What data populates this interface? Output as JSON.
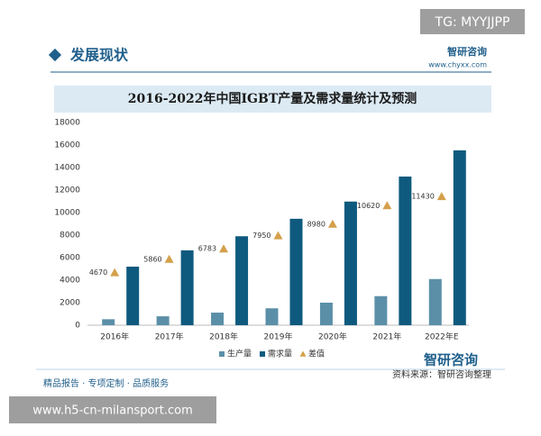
{
  "tag": "TG: MYYJJPP",
  "section_title": "发展现状",
  "brand": "智研咨询",
  "brand_url": "www.chyxx.com",
  "chart_data": {
    "type": "bar",
    "title": "2016-2022年中国IGBT产量及需求量统计及预测",
    "categories": [
      "2016年",
      "2017年",
      "2018年",
      "2019年",
      "2020年",
      "2021年",
      "2022年E"
    ],
    "series": [
      {
        "name": "生产量",
        "color": "#5b8fa8",
        "values": [
          530,
          790,
          1117,
          1500,
          2000,
          2580,
          4100
        ]
      },
      {
        "name": "需求量",
        "color": "#0e5a7e",
        "values": [
          5200,
          6650,
          7900,
          9450,
          10980,
          13200,
          15530
        ]
      },
      {
        "name": "差值",
        "color": "#d4a04a",
        "marker": "triangle",
        "values": [
          4670,
          5860,
          6783,
          7950,
          8980,
          10620,
          11430
        ]
      }
    ],
    "ylim": [
      0,
      18000
    ],
    "yticks": [
      0,
      2000,
      4000,
      6000,
      8000,
      10000,
      12000,
      14000,
      16000,
      18000
    ],
    "grid": false,
    "legend": "bottom"
  },
  "footer": {
    "logo": "智研咨询",
    "slogan": "精品报告 · 专项定制 · 品质服务",
    "source": "资料来源：智研咨询整理",
    "site": "www.h5-cn-milansport.com"
  }
}
